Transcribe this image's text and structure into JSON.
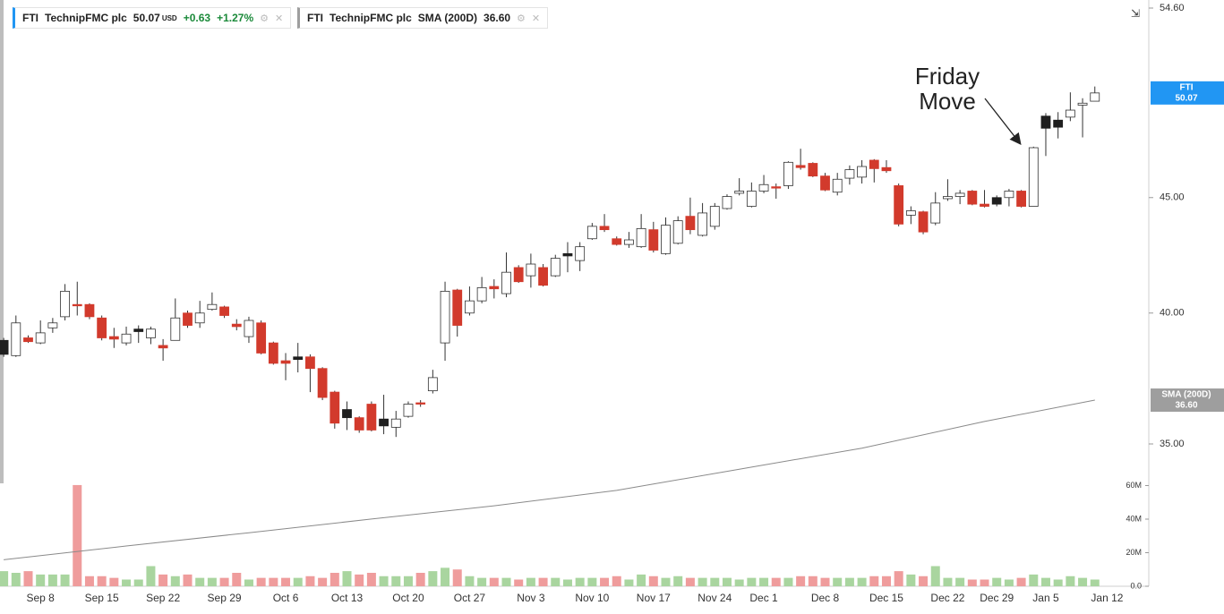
{
  "chart_data": {
    "type": "candlestick",
    "legend": [
      {
        "symbol": "FTI",
        "name": "TechnipFMC plc",
        "price": 50.07,
        "currency": "USD",
        "change": {
          "value": 0.63,
          "label": "+0.63"
        },
        "change_pct": {
          "value": 1.27,
          "label": "+1.27%"
        }
      },
      {
        "symbol": "FTI",
        "name": "TechnipFMC plc",
        "indicator": "SMA (200D)",
        "value": {
          "value": 36.6,
          "label": "36.60"
        }
      }
    ],
    "annotation": [
      "Friday",
      "Move"
    ],
    "log_scale": true,
    "xlim": [
      -0.3,
      93.4
    ],
    "ylim": [
      30.27,
      55.05
    ],
    "yticks": [
      {
        "value": 54.6,
        "label": "54.60"
      },
      {
        "value": 45,
        "label": "45.00"
      },
      {
        "value": 40,
        "label": "40.00"
      },
      {
        "value": 35,
        "label": "35.00"
      }
    ],
    "y2lim": [
      0,
      70000000
    ],
    "y2ticks": [
      {
        "value": 0,
        "label": "0.0"
      },
      {
        "value": 20000000,
        "label": "20M"
      },
      {
        "value": 40000000,
        "label": "40M"
      },
      {
        "value": 60000000,
        "label": "60M"
      }
    ],
    "xticks": [
      {
        "value": 3,
        "label": "Sep 8"
      },
      {
        "value": 8,
        "label": "Sep 15"
      },
      {
        "value": 13,
        "label": "Sep 22"
      },
      {
        "value": 18,
        "label": "Sep 29"
      },
      {
        "value": 23,
        "label": "Oct 6"
      },
      {
        "value": 28,
        "label": "Oct 13"
      },
      {
        "value": 33,
        "label": "Oct 20"
      },
      {
        "value": 38,
        "label": "Oct 27"
      },
      {
        "value": 43,
        "label": "Nov 3"
      },
      {
        "value": 48,
        "label": "Nov 10"
      },
      {
        "value": 53,
        "label": "Nov 17"
      },
      {
        "value": 58,
        "label": "Nov 24"
      },
      {
        "value": 62,
        "label": "Dec 1"
      },
      {
        "value": 67,
        "label": "Dec 8"
      },
      {
        "value": 72,
        "label": "Dec 15"
      },
      {
        "value": 77,
        "label": "Dec 22"
      },
      {
        "value": 81,
        "label": "Dec 29"
      },
      {
        "value": 85,
        "label": "Jan 5"
      },
      {
        "value": 90,
        "label": "Jan 12"
      }
    ],
    "open": [
      38.35,
      38.3,
      39.0,
      38.8,
      39.4,
      39.85,
      40.35,
      40.35,
      39.8,
      39.05,
      38.8,
      39.25,
      39.0,
      38.7,
      38.9,
      40.0,
      39.6,
      40.15,
      40.25,
      39.55,
      39.05,
      39.6,
      38.8,
      38.1,
      38.15,
      38.25,
      37.8,
      36.9,
      35.95,
      35.95,
      36.45,
      35.65,
      35.6,
      36.0,
      36.5,
      36.95,
      38.8,
      40.95,
      40.0,
      40.5,
      41.1,
      40.8,
      41.9,
      41.55,
      41.9,
      41.55,
      42.4,
      42.2,
      43.15,
      43.7,
      43.15,
      42.9,
      42.8,
      43.55,
      42.5,
      42.95,
      44.15,
      43.3,
      43.7,
      44.5,
      45.2,
      44.6,
      45.3,
      45.5,
      45.55,
      46.5,
      46.6,
      46.0,
      45.25,
      45.9,
      45.95,
      46.75,
      46.4,
      45.55,
      44.2,
      44.35,
      43.85,
      44.95,
      45.05,
      45.3,
      44.7,
      44.7,
      45.0,
      45.3,
      44.6,
      48.3,
      48.35,
      48.85,
      49.45,
      49.65
    ],
    "high": [
      39.0,
      39.9,
      39.1,
      39.7,
      39.8,
      41.2,
      41.3,
      40.4,
      39.9,
      39.4,
      39.45,
      39.5,
      39.45,
      38.95,
      40.6,
      40.1,
      40.5,
      40.85,
      40.3,
      39.75,
      39.85,
      39.7,
      38.85,
      38.4,
      38.8,
      38.35,
      37.85,
      36.95,
      36.55,
      36.0,
      36.55,
      36.8,
      36.2,
      36.55,
      36.6,
      37.75,
      41.3,
      41.0,
      41.1,
      41.5,
      41.4,
      42.55,
      42.0,
      42.5,
      42.05,
      42.45,
      43.0,
      43.0,
      43.85,
      44.25,
      43.25,
      43.45,
      44.25,
      43.9,
      44.1,
      44.15,
      45.0,
      44.75,
      44.75,
      45.15,
      45.9,
      45.7,
      46.05,
      45.65,
      46.7,
      47.3,
      46.65,
      46.15,
      46.15,
      46.5,
      46.75,
      46.8,
      46.75,
      45.65,
      44.6,
      44.4,
      45.25,
      45.85,
      45.35,
      45.35,
      45.35,
      45.1,
      45.4,
      45.35,
      47.4,
      49.05,
      49.1,
      50.1,
      49.8,
      50.4
    ],
    "low": [
      38.25,
      38.25,
      38.8,
      38.75,
      39.2,
      39.7,
      39.9,
      39.75,
      38.9,
      38.6,
      38.7,
      38.8,
      38.75,
      38.1,
      38.9,
      39.4,
      39.4,
      40.1,
      39.8,
      39.3,
      38.8,
      38.35,
      37.95,
      37.35,
      37.65,
      36.9,
      36.6,
      35.55,
      35.5,
      35.4,
      35.45,
      35.35,
      35.25,
      35.95,
      36.35,
      36.85,
      38.1,
      39.05,
      39.9,
      40.4,
      40.6,
      40.65,
      41.25,
      41.05,
      41.1,
      41.5,
      41.7,
      41.75,
      43.1,
      43.45,
      42.85,
      42.75,
      42.75,
      42.55,
      42.45,
      42.9,
      43.35,
      43.25,
      43.55,
      44.45,
      45.1,
      44.55,
      45.2,
      44.95,
      45.4,
      46.3,
      45.95,
      45.3,
      45.1,
      45.6,
      45.65,
      45.7,
      46.15,
      43.7,
      43.8,
      43.35,
      43.75,
      44.85,
      44.7,
      44.65,
      44.55,
      44.6,
      44.6,
      44.55,
      44.6,
      46.95,
      47.8,
      48.65,
      47.85,
      49.65
    ],
    "close": [
      38.9,
      39.6,
      38.85,
      39.2,
      39.6,
      40.9,
      40.3,
      39.85,
      39.0,
      38.95,
      39.15,
      39.35,
      39.35,
      38.6,
      39.8,
      39.5,
      40.0,
      40.35,
      39.9,
      39.45,
      39.7,
      38.4,
      38.0,
      38.0,
      38.25,
      37.8,
      36.7,
      35.75,
      36.25,
      35.5,
      35.5,
      35.9,
      35.9,
      36.45,
      36.45,
      37.45,
      40.9,
      39.5,
      40.5,
      41.05,
      41.0,
      41.7,
      41.3,
      42.05,
      41.15,
      42.3,
      42.5,
      42.8,
      43.7,
      43.55,
      42.9,
      43.1,
      43.6,
      42.65,
      43.75,
      43.95,
      43.55,
      44.3,
      44.6,
      45.05,
      45.3,
      45.3,
      45.6,
      45.45,
      46.65,
      46.4,
      46.0,
      45.35,
      45.85,
      46.3,
      46.45,
      46.35,
      46.25,
      43.8,
      44.4,
      43.45,
      44.75,
      45.05,
      45.2,
      44.7,
      44.6,
      45.0,
      45.3,
      44.6,
      47.35,
      48.9,
      48.7,
      49.2,
      49.55,
      50.07
    ],
    "volume": [
      9000000,
      8000000,
      9000000,
      7000000,
      7000000,
      7000000,
      60300000,
      6000000,
      6000000,
      5000000,
      4000000,
      4000000,
      12000000,
      7000000,
      6000000,
      7000000,
      5000000,
      5000000,
      5000000,
      8000000,
      4000000,
      5000000,
      5000000,
      5000000,
      5000000,
      6000000,
      5000000,
      8000000,
      9000000,
      7000000,
      8000000,
      6000000,
      6000000,
      6000000,
      8000000,
      9000000,
      11000000,
      10000000,
      6000000,
      5000000,
      5000000,
      5000000,
      4000000,
      5000000,
      5000000,
      5000000,
      4000000,
      5000000,
      5000000,
      5000000,
      6000000,
      4000000,
      7000000,
      6000000,
      5000000,
      6000000,
      5000000,
      5000000,
      5000000,
      5000000,
      4000000,
      5000000,
      5000000,
      5000000,
      5000000,
      6000000,
      6000000,
      5000000,
      5000000,
      5000000,
      5000000,
      6000000,
      6000000,
      9000000,
      7000000,
      6000000,
      12000000,
      5000000,
      5000000,
      4000000,
      4000000,
      5000000,
      4000000,
      5000000,
      7000000,
      5000000,
      4000000,
      6000000,
      5000000,
      4000000
    ],
    "colors": [
      "#1f1f1f",
      "#ffffff",
      "#d23a2c",
      "#ffffff",
      "#ffffff",
      "#ffffff",
      "#d23a2c",
      "#d23a2c",
      "#d23a2c",
      "#d23a2c",
      "#ffffff",
      "#1f1f1f",
      "#ffffff",
      "#d23a2c",
      "#ffffff",
      "#d23a2c",
      "#ffffff",
      "#ffffff",
      "#d23a2c",
      "#d23a2c",
      "#ffffff",
      "#d23a2c",
      "#d23a2c",
      "#d23a2c",
      "#1f1f1f",
      "#d23a2c",
      "#d23a2c",
      "#d23a2c",
      "#1f1f1f",
      "#d23a2c",
      "#d23a2c",
      "#1f1f1f",
      "#ffffff",
      "#ffffff",
      "#d23a2c",
      "#ffffff",
      "#ffffff",
      "#d23a2c",
      "#ffffff",
      "#ffffff",
      "#d23a2c",
      "#ffffff",
      "#d23a2c",
      "#ffffff",
      "#d23a2c",
      "#ffffff",
      "#1f1f1f",
      "#ffffff",
      "#ffffff",
      "#d23a2c",
      "#d23a2c",
      "#ffffff",
      "#ffffff",
      "#d23a2c",
      "#ffffff",
      "#ffffff",
      "#d23a2c",
      "#ffffff",
      "#ffffff",
      "#ffffff",
      "#ffffff",
      "#ffffff",
      "#ffffff",
      "#d23a2c",
      "#ffffff",
      "#d23a2c",
      "#d23a2c",
      "#d23a2c",
      "#ffffff",
      "#ffffff",
      "#ffffff",
      "#d23a2c",
      "#d23a2c",
      "#d23a2c",
      "#ffffff",
      "#d23a2c",
      "#ffffff",
      "#ffffff",
      "#ffffff",
      "#d23a2c",
      "#d23a2c",
      "#1f1f1f",
      "#ffffff",
      "#d23a2c",
      "#ffffff",
      "#1f1f1f",
      "#1f1f1f",
      "#ffffff",
      "#ffffff",
      "#ffffff"
    ],
    "volume_up_color": "#a9d59f",
    "volume_down_color": "#ef9c9c",
    "sma": {
      "name": "SMA (200D)",
      "color": "#8a8a8a",
      "x": [
        0,
        10,
        20,
        30,
        40,
        50,
        60,
        70,
        80,
        89
      ],
      "values": [
        31.1,
        31.54,
        31.97,
        32.42,
        32.86,
        33.38,
        34.11,
        34.85,
        35.81,
        36.6
      ]
    },
    "price_tags": [
      {
        "label": "FTI",
        "value": 50.07,
        "color": "#2196f3"
      },
      {
        "label": "SMA (200D)",
        "value": {
          "value": 36.6,
          "label": "36.60"
        },
        "color": "#9e9e9e"
      }
    ]
  }
}
